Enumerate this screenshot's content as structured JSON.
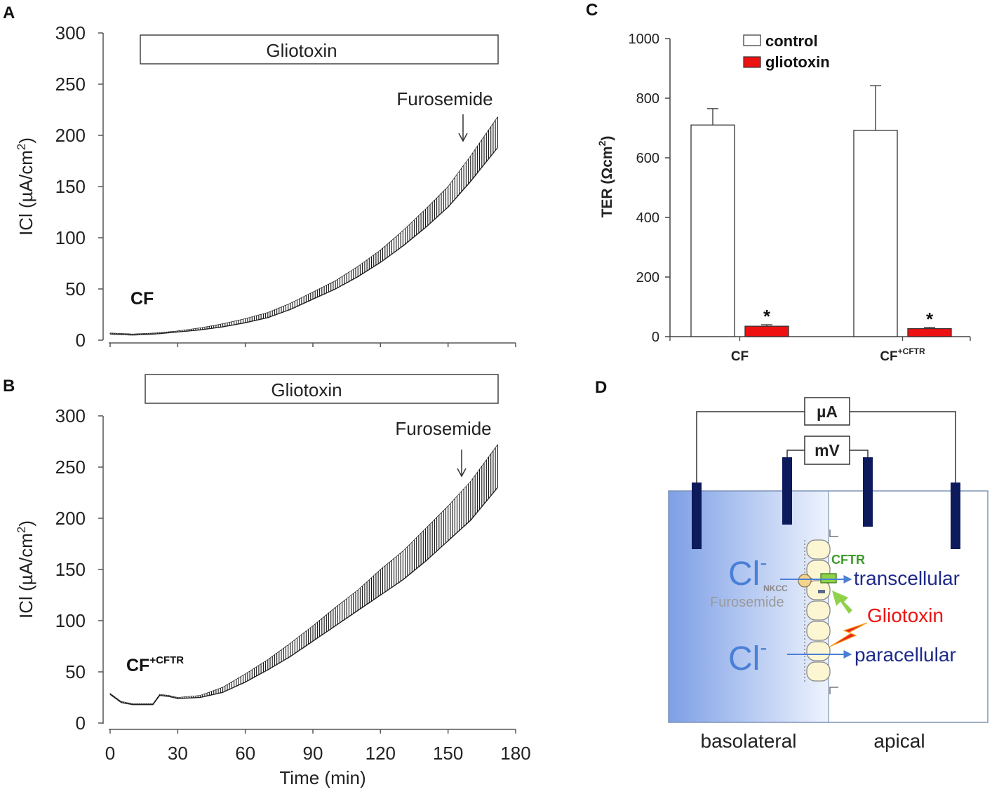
{
  "panels": {
    "A": {
      "label": "A",
      "treatment": "Gliotoxin",
      "arrow_label": "Furosemide",
      "cell_label": "CF",
      "cell_sup": ""
    },
    "B": {
      "label": "B",
      "treatment": "Gliotoxin",
      "arrow_label": "Furosemide",
      "cell_label": "CF",
      "cell_sup": "+CFTR"
    },
    "C": {
      "label": "C"
    },
    "D": {
      "label": "D"
    }
  },
  "chart_data": [
    {
      "id": "A",
      "type": "line",
      "ylabel": "ICl (µA/cm2)",
      "xlabel": "",
      "ylim": [
        0,
        300
      ],
      "yticks": [
        0,
        50,
        100,
        150,
        200,
        250,
        300
      ],
      "xlim": [
        0,
        180
      ],
      "xticks": [
        0,
        30,
        60,
        90,
        120,
        150,
        180
      ],
      "x_tick_labels_shown": false,
      "treatment_bar_minutes": [
        15,
        173
      ],
      "arrow_at_minutes": 158,
      "series": [
        {
          "name": "ICl baseline",
          "x": [
            0,
            10,
            20,
            30,
            40,
            50,
            60,
            70,
            80,
            90,
            100,
            110,
            120,
            130,
            140,
            150,
            160,
            172
          ],
          "values": [
            6,
            5,
            6,
            8,
            10,
            13,
            17,
            22,
            30,
            40,
            50,
            62,
            76,
            92,
            110,
            130,
            155,
            188
          ]
        },
        {
          "name": "ICl pulse peak",
          "x": [
            0,
            10,
            20,
            30,
            40,
            50,
            60,
            70,
            80,
            90,
            100,
            110,
            120,
            130,
            140,
            150,
            160,
            172
          ],
          "values": [
            7,
            6,
            7,
            9,
            12,
            16,
            21,
            27,
            36,
            47,
            58,
            72,
            88,
            107,
            128,
            150,
            180,
            218
          ]
        }
      ]
    },
    {
      "id": "B",
      "type": "line",
      "ylabel": "ICl (µA/cm2)",
      "xlabel": "Time (min)",
      "ylim": [
        0,
        300
      ],
      "yticks": [
        0,
        50,
        100,
        150,
        200,
        250,
        300
      ],
      "xlim": [
        0,
        180
      ],
      "xticks": [
        0,
        30,
        60,
        90,
        120,
        150,
        180
      ],
      "treatment_bar_minutes": [
        16,
        173
      ],
      "arrow_at_minutes": 158,
      "series": [
        {
          "name": "ICl baseline",
          "x": [
            0,
            5,
            10,
            15,
            19,
            22,
            26,
            30,
            40,
            50,
            60,
            70,
            80,
            90,
            100,
            110,
            120,
            130,
            140,
            150,
            160,
            172
          ],
          "values": [
            28,
            20,
            18,
            18,
            18,
            27,
            26,
            24,
            25,
            30,
            40,
            52,
            65,
            80,
            95,
            110,
            125,
            140,
            158,
            178,
            198,
            230
          ]
        },
        {
          "name": "ICl pulse peak",
          "x": [
            0,
            5,
            10,
            15,
            19,
            22,
            26,
            30,
            40,
            50,
            60,
            70,
            80,
            90,
            100,
            110,
            120,
            130,
            140,
            150,
            160,
            172
          ],
          "values": [
            29,
            21,
            19,
            19,
            19,
            28,
            27,
            25,
            27,
            35,
            48,
            62,
            78,
            95,
            113,
            130,
            150,
            168,
            190,
            212,
            236,
            272
          ]
        }
      ]
    },
    {
      "id": "C",
      "type": "bar",
      "ylabel": "TER (Ωcm2)",
      "ylim": [
        0,
        1000
      ],
      "yticks": [
        0,
        200,
        400,
        600,
        800,
        1000
      ],
      "categories": [
        {
          "label": "CF",
          "sup": ""
        },
        {
          "label": "CF",
          "sup": "+CFTR"
        }
      ],
      "series": [
        {
          "name": "control",
          "color": "#ffffff",
          "values": [
            710,
            692
          ],
          "errors": [
            55,
            150
          ],
          "significance": [
            "",
            ""
          ]
        },
        {
          "name": "gliotoxin",
          "color": "#ee1111",
          "values": [
            35,
            27
          ],
          "errors": [
            5,
            4
          ],
          "significance": [
            "*",
            "*"
          ]
        }
      ],
      "legend_position": "top-center"
    }
  ],
  "diagram": {
    "microamp_box": "µA",
    "millivolt_box": "mV",
    "cl_ion": "Cl",
    "cl_charge": "-",
    "nkcc_label": "NKCC",
    "furosemide_label": "Furosemide",
    "cftr_label": "CFTR",
    "transcellular_label": "transcellular",
    "gliotoxin_label": "Gliotoxin",
    "paracellular_label": "paracellular",
    "basolateral_label": "basolateral",
    "apical_label": "apical",
    "colors": {
      "cl": "#4a7fd6",
      "route": "#1e2a8a",
      "gliotoxin": "#ee1111",
      "cftr": "#3d9a2a",
      "electrode": "#0d1a5c",
      "furosemide": "#9a9a9a"
    }
  }
}
